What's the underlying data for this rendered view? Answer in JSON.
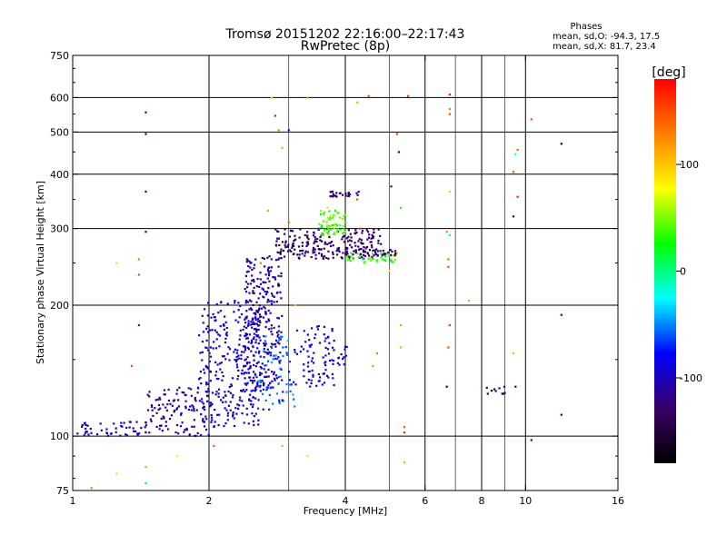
{
  "chart_data": {
    "type": "scatter",
    "title": "Tromsø 20151202 22:16:00–22:17:43",
    "subtitle": "RwPretec (8p)",
    "xlabel": "Frequency [MHz]",
    "ylabel": "Stationary phase Virtual Height [km]",
    "x_scale": "log",
    "y_scale": "log",
    "xlim": [
      1,
      16
    ],
    "ylim": [
      75,
      750
    ],
    "x_ticks": [
      1,
      2,
      4,
      6,
      8,
      10,
      16
    ],
    "x_tick_labels": [
      "1",
      "2",
      "4",
      "6",
      "8",
      "10",
      "16"
    ],
    "x_minor_ticks": [
      3,
      5,
      7,
      9
    ],
    "y_ticks": [
      75,
      100,
      200,
      300,
      400,
      500,
      600,
      750
    ],
    "y_tick_labels": [
      "75",
      "100",
      "200",
      "300",
      "400",
      "500",
      "600",
      "750"
    ],
    "x_gridlines": [
      2,
      4,
      6,
      8,
      10
    ],
    "y_gridlines": [
      100,
      200,
      300,
      400,
      500,
      600
    ],
    "grid": true,
    "colorbar": {
      "label": "[deg]",
      "ticks": [
        100,
        0,
        -100
      ],
      "tick_labels": [
        "100",
        "0",
        "-100"
      ],
      "range": [
        -180,
        180
      ],
      "colors": [
        "#000000",
        "#3a0066",
        "#0000ff",
        "#00ffff",
        "#00ff00",
        "#ffff00",
        "#ff7f00",
        "#ff0000"
      ]
    },
    "stats": {
      "heading": "Phases",
      "line1": "mean, sd,O: -94.3, 17.5",
      "line2": "mean, sd,X: 81.7, 23.4"
    },
    "clusters": [
      {
        "x0": 1.0,
        "x1": 1.45,
        "y0": 100,
        "y1": 108,
        "phase": -100,
        "n": 50
      },
      {
        "x0": 1.45,
        "x1": 2.0,
        "y0": 100,
        "y1": 130,
        "phase": -110,
        "n": 120
      },
      {
        "x0": 1.9,
        "x1": 2.6,
        "y0": 105,
        "y1": 205,
        "phase": -95,
        "n": 300
      },
      {
        "x0": 2.4,
        "x1": 2.9,
        "y0": 130,
        "y1": 260,
        "phase": -105,
        "n": 260
      },
      {
        "x0": 2.5,
        "x1": 3.1,
        "y0": 115,
        "y1": 170,
        "phase": -60,
        "n": 80
      },
      {
        "x0": 3.1,
        "x1": 3.8,
        "y0": 130,
        "y1": 180,
        "phase": -90,
        "n": 80
      },
      {
        "x0": 2.8,
        "x1": 4.8,
        "y0": 255,
        "y1": 300,
        "phase": -130,
        "n": 220
      },
      {
        "x0": 3.5,
        "x1": 4.0,
        "y0": 290,
        "y1": 330,
        "phase": 40,
        "n": 60
      },
      {
        "x0": 4.0,
        "x1": 5.2,
        "y0": 250,
        "y1": 265,
        "phase": 40,
        "n": 40
      },
      {
        "x0": 3.8,
        "x1": 5.2,
        "y0": 260,
        "y1": 270,
        "phase": -130,
        "n": 40
      },
      {
        "x0": 3.7,
        "x1": 4.3,
        "y0": 355,
        "y1": 365,
        "phase": -130,
        "n": 25
      },
      {
        "x0": 3.85,
        "x1": 4.05,
        "y0": 145,
        "y1": 165,
        "phase": -100,
        "n": 12
      },
      {
        "x0": 8.2,
        "x1": 9.0,
        "y0": 125,
        "y1": 130,
        "phase": -140,
        "n": 10
      }
    ],
    "points": [
      [
        1.45,
        555,
        -100
      ],
      [
        1.45,
        495,
        -110
      ],
      [
        1.45,
        365,
        -100
      ],
      [
        1.45,
        295,
        -90
      ],
      [
        1.4,
        255,
        130
      ],
      [
        1.4,
        235,
        150
      ],
      [
        1.25,
        250,
        60
      ],
      [
        1.4,
        180,
        -70
      ],
      [
        1.35,
        145,
        150
      ],
      [
        1.45,
        85,
        40
      ],
      [
        1.45,
        78,
        10
      ],
      [
        2.75,
        600,
        90
      ],
      [
        2.85,
        505,
        130
      ],
      [
        2.8,
        545,
        -60
      ],
      [
        2.9,
        460,
        110
      ],
      [
        3.0,
        505,
        -80
      ],
      [
        3.3,
        600,
        120
      ],
      [
        4.5,
        605,
        150
      ],
      [
        4.25,
        585,
        110
      ],
      [
        5.2,
        495,
        160
      ],
      [
        5.25,
        450,
        -120
      ],
      [
        5.5,
        605,
        160
      ],
      [
        6.8,
        610,
        170
      ],
      [
        6.8,
        565,
        130
      ],
      [
        6.8,
        550,
        150
      ],
      [
        6.8,
        365,
        100
      ],
      [
        6.8,
        290,
        -30
      ],
      [
        6.75,
        255,
        140
      ],
      [
        6.75,
        245,
        150
      ],
      [
        6.7,
        295,
        130
      ],
      [
        6.8,
        180,
        160
      ],
      [
        6.75,
        160,
        150
      ],
      [
        6.7,
        130,
        -150
      ],
      [
        7.5,
        205,
        110
      ],
      [
        9.5,
        445,
        -20
      ],
      [
        9.6,
        455,
        140
      ],
      [
        9.4,
        405,
        150
      ],
      [
        9.6,
        355,
        170
      ],
      [
        9.4,
        320,
        -130
      ],
      [
        9.4,
        155,
        50
      ],
      [
        10.3,
        535,
        150
      ],
      [
        12.0,
        470,
        -160
      ],
      [
        12.0,
        190,
        -110
      ],
      [
        12.0,
        112,
        -120
      ],
      [
        10.3,
        98,
        -110
      ],
      [
        9.5,
        130,
        -100
      ],
      [
        5.3,
        180,
        120
      ],
      [
        5.3,
        160,
        110
      ],
      [
        5.4,
        105,
        140
      ],
      [
        5.4,
        102,
        160
      ],
      [
        5.4,
        87,
        110
      ],
      [
        4.25,
        350,
        150
      ],
      [
        4.3,
        300,
        160
      ],
      [
        5.05,
        375,
        -130
      ],
      [
        5.0,
        240,
        80
      ],
      [
        3.1,
        200,
        100
      ],
      [
        3.0,
        310,
        140
      ],
      [
        2.7,
        330,
        120
      ],
      [
        2.9,
        95,
        110
      ],
      [
        2.05,
        95,
        140
      ],
      [
        1.7,
        90,
        80
      ],
      [
        1.25,
        82,
        90
      ],
      [
        1.1,
        76,
        130
      ],
      [
        2.6,
        250,
        130
      ],
      [
        3.3,
        90,
        90
      ],
      [
        4.6,
        145,
        120
      ],
      [
        4.7,
        155,
        130
      ],
      [
        5.3,
        335,
        30
      ],
      [
        3.65,
        335,
        90
      ],
      [
        3.5,
        300,
        -60
      ]
    ]
  }
}
